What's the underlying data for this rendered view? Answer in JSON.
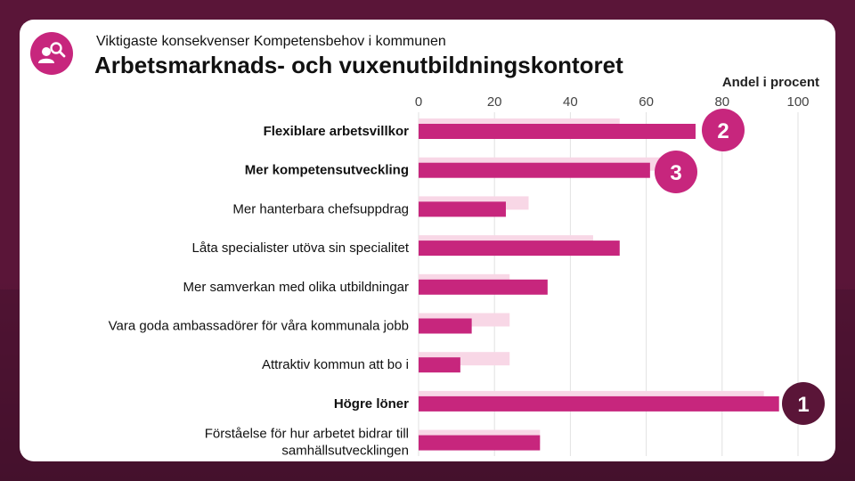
{
  "header": {
    "supertitle": "Viktigaste konsekvenser Kompetensbehov i kommunen",
    "title": "Arbetsmarknads- och vuxenutbildningskontoret",
    "logo_icon": "person-search-icon"
  },
  "colors": {
    "primary": "#c7267d",
    "secondary": "#f8d7e6",
    "badge_pink": "#c7267d",
    "badge_dark": "#5a1538"
  },
  "chart_data": {
    "type": "bar",
    "orientation": "horizontal",
    "title": "",
    "xlabel": "Andel i procent",
    "ylabel": "",
    "xlim": [
      0,
      100
    ],
    "xticks": [
      0,
      20,
      40,
      60,
      80,
      100
    ],
    "categories": [
      "Flexiblare arbetsvillkor",
      "Mer kompetensutveckling",
      "Mer hanterbara chefsuppdrag",
      "Låta specialister utöva sin specialitet",
      "Mer samverkan med olika utbildningar",
      "Vara goda ambassadörer för våra kommunala jobb",
      "Attraktiv kommun att bo i",
      "Högre löner",
      "Förståelse för hur arbetet bidrar till samhällsutvecklingen"
    ],
    "bold_categories": [
      0,
      1,
      7
    ],
    "series": [
      {
        "values": [
          53,
          65,
          29,
          46,
          24,
          24,
          24,
          91,
          32
        ]
      },
      {
        "values": [
          73,
          61,
          23,
          53,
          34,
          14,
          11,
          95,
          32
        ]
      }
    ],
    "rank_badges": [
      {
        "label": "2",
        "category": 0,
        "style": "pink"
      },
      {
        "label": "3",
        "category": 1,
        "style": "pink"
      },
      {
        "label": "1",
        "category": 7,
        "style": "dark"
      }
    ]
  }
}
